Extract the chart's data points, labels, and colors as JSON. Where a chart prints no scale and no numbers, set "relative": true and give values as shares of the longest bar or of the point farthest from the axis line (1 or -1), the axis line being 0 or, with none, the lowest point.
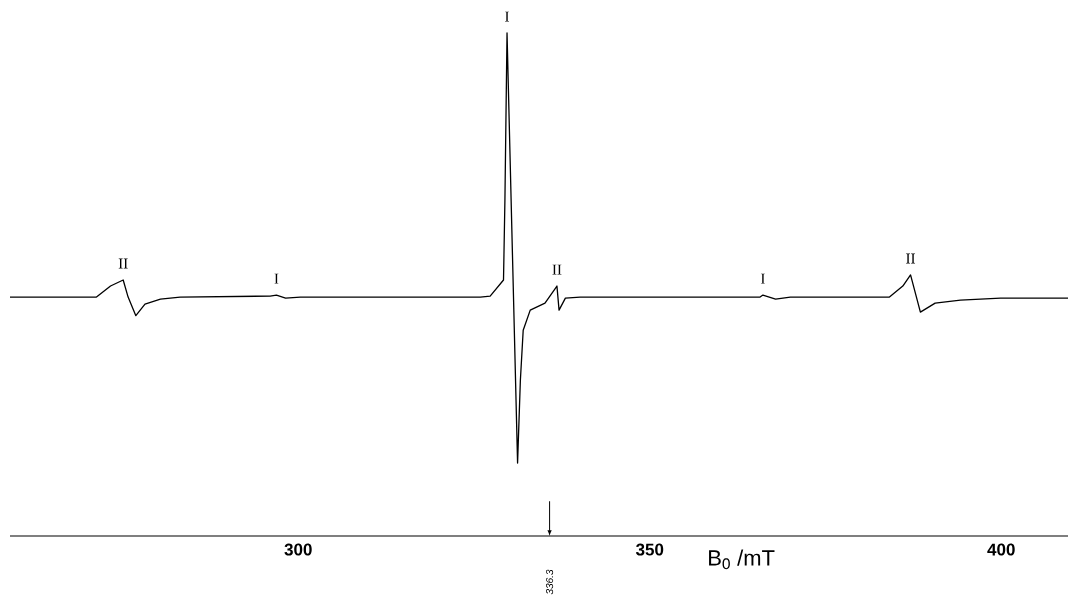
{
  "chart_data": {
    "type": "line",
    "relative": true,
    "color": "#000000",
    "xlabel": "B$_{0}$ /mT",
    "xlim": [
      259,
      409.5
    ],
    "xticks": [
      300,
      350,
      400
    ],
    "x": [
      259.0,
      269.0,
      271.3,
      273.3,
      275.1,
      275.8,
      276.9,
      278.2,
      280.4,
      283.2,
      296.0,
      296.9,
      298.2,
      300.3,
      325.9,
      327.3,
      329.2,
      329.4,
      329.7,
      331.2,
      331.6,
      332.0,
      333.0,
      335.1,
      336.8,
      337.1,
      338.0,
      340.1,
      365.7,
      366.1,
      367.9,
      370.0,
      384.1,
      386.0,
      387.1,
      388.5,
      390.6,
      394.2,
      399.9,
      409.5
    ],
    "values": [
      0.475,
      0.475,
      0.475,
      0.497,
      0.509,
      0.475,
      0.438,
      0.461,
      0.471,
      0.475,
      0.477,
      0.479,
      0.473,
      0.475,
      0.475,
      0.477,
      0.509,
      0.668,
      1.0,
      0.145,
      0.31,
      0.409,
      0.449,
      0.463,
      0.497,
      0.449,
      0.473,
      0.475,
      0.475,
      0.479,
      0.471,
      0.475,
      0.475,
      0.497,
      0.519,
      0.445,
      0.463,
      0.469,
      0.473,
      0.473
    ],
    "annotations": [
      {
        "text": "II",
        "x": 275.1,
        "y": 0.509
      },
      {
        "text": "I",
        "x": 296.9,
        "y": 0.479
      },
      {
        "text": "I",
        "x": 329.7,
        "y": 1.0
      },
      {
        "text": "II",
        "x": 336.8,
        "y": 0.497
      },
      {
        "text": "I",
        "x": 366.1,
        "y": 0.479
      },
      {
        "text": "II",
        "x": 387.1,
        "y": 0.519
      },
      "336.3"
    ]
  }
}
